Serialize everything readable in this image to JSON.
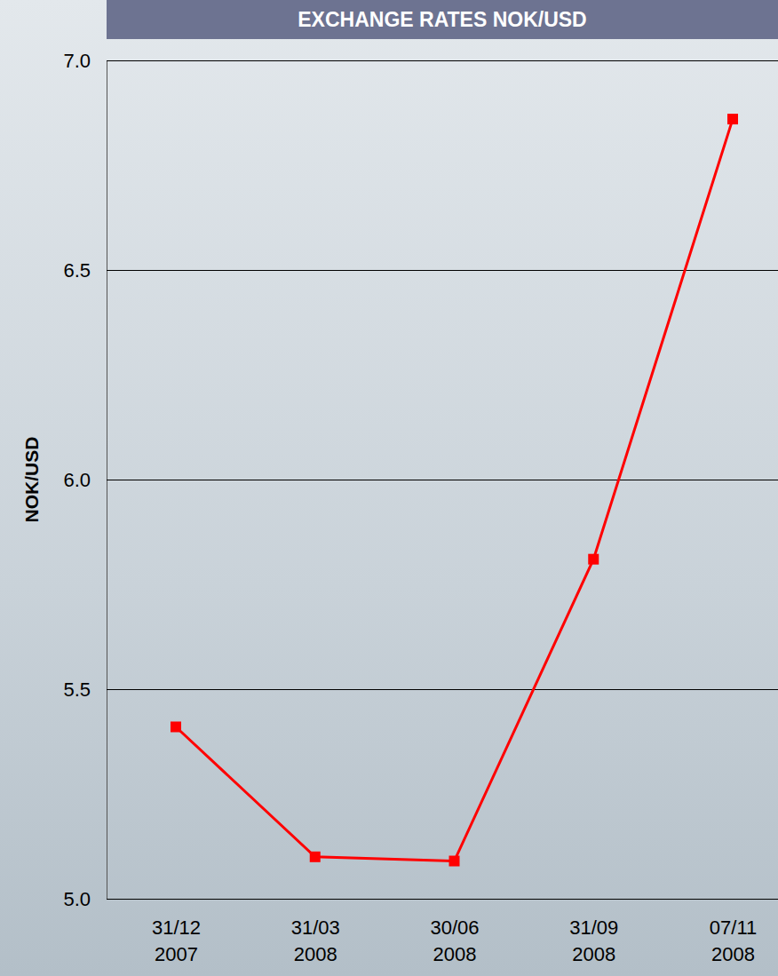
{
  "chart_data": {
    "type": "line",
    "title": "EXCHANGE RATES NOK/USD",
    "y_label": "NOK/USD",
    "categories": [
      "31/12 2007",
      "31/03 2008",
      "30/06 2008",
      "31/09 2008",
      "07/11 2008"
    ],
    "values": [
      5.41,
      5.1,
      5.09,
      5.81,
      6.86
    ],
    "color": "#ff0000",
    "marker": "square",
    "ylim": [
      5,
      7
    ],
    "yticks": [
      {
        "value": 5,
        "label": "5.0"
      },
      {
        "value": 5.5,
        "label": "5.5"
      },
      {
        "value": 6,
        "label": "6.0"
      },
      {
        "value": 6.5,
        "label": "6.5"
      },
      {
        "value": 7,
        "label": "7.0"
      }
    ],
    "grid": true
  }
}
